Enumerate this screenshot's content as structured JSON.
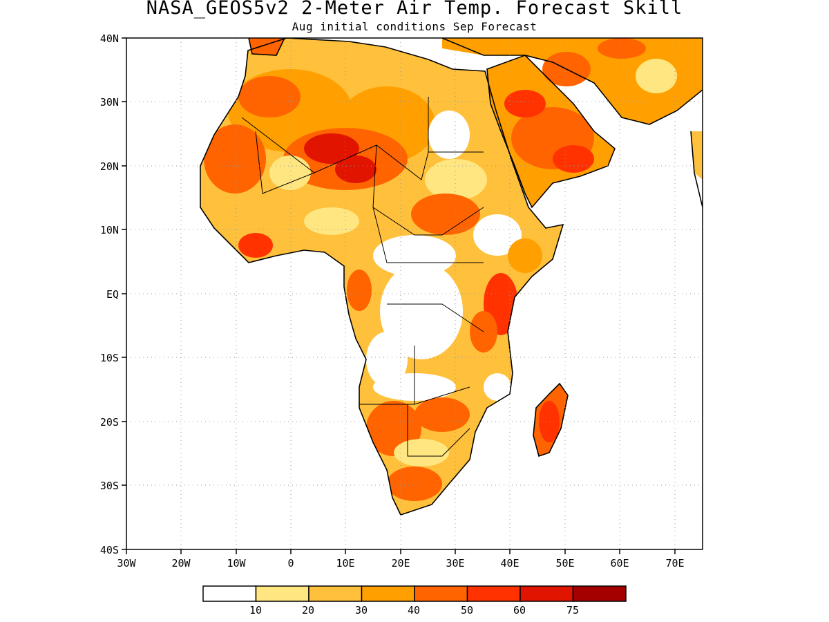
{
  "title": "NASA_GEOS5v2 2-Meter Air Temp. Forecast Skill",
  "subtitle": "Aug initial conditions  Sep Forecast",
  "map": {
    "lon_range": [
      -30,
      75
    ],
    "lat_range": [
      -40,
      40
    ],
    "y_ticks": [
      "40N",
      "30N",
      "20N",
      "10N",
      "EQ",
      "10S",
      "20S",
      "30S",
      "40S"
    ],
    "x_ticks": [
      "30W",
      "20W",
      "10W",
      "0",
      "10E",
      "20E",
      "30E",
      "40E",
      "50E",
      "60E",
      "70E"
    ],
    "gridlines": "dotted"
  },
  "colorbar": {
    "labels": [
      "10",
      "20",
      "30",
      "40",
      "50",
      "60",
      "75"
    ],
    "colors": [
      "#ffffff",
      "#ffe680",
      "#ffc03c",
      "#ffa000",
      "#ff6400",
      "#ff3200",
      "#e11400",
      "#a50000"
    ]
  }
}
